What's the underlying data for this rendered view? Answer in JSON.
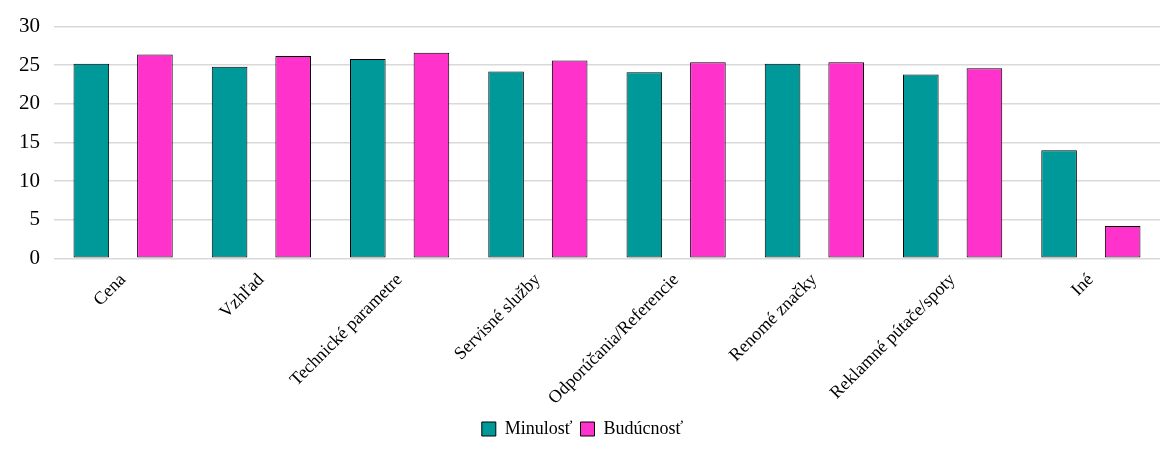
{
  "chart_data": {
    "type": "bar",
    "categories": [
      "Cena",
      "Vzhľad",
      "Technické parametre",
      "Servisné služby",
      "Odporúčania/Referencie",
      "Renomé značky",
      "Reklamné pútače/spoty",
      "Iné"
    ],
    "series": [
      {
        "name": "Minulosť",
        "color": "#009999",
        "values": [
          25.2,
          24.8,
          25.8,
          24.2,
          24.1,
          25.2,
          23.8,
          14.0
        ]
      },
      {
        "name": "Budúcnosť",
        "color": "#ff33cc",
        "values": [
          26.4,
          26.2,
          26.6,
          25.6,
          25.4,
          25.4,
          24.6,
          4.2
        ]
      }
    ],
    "ylim": [
      0,
      30
    ],
    "yticks": [
      0,
      5,
      10,
      15,
      20,
      25,
      30
    ],
    "grid": "y",
    "legend": "bottom"
  }
}
